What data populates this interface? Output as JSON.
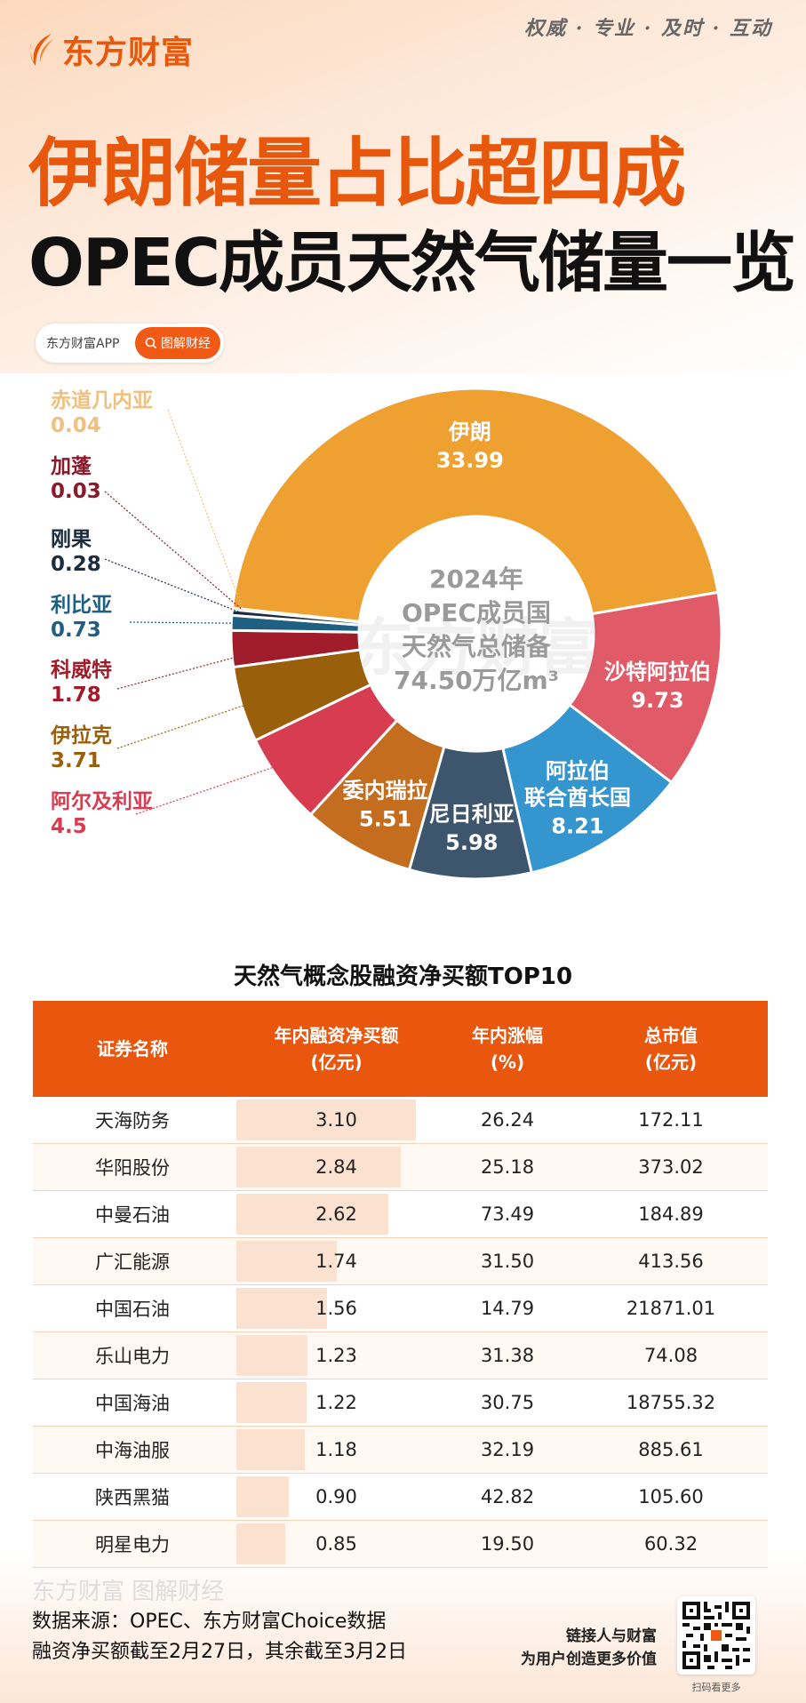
{
  "header": {
    "brand": "东方财富",
    "slogan": "权威 · 专业 · 及时 · 互动",
    "title_line1": "伊朗储量占比超四成",
    "title_line2": "OPEC成员天然气储量一览",
    "badge_app": "东方财富APP",
    "badge_button": "图解财经",
    "accent_color": "#e8580c"
  },
  "chart_data": {
    "type": "pie",
    "style": "donut",
    "center_text": [
      "2024年",
      "OPEC成员国",
      "天然气总储备",
      "74.50万亿m³"
    ],
    "unit": "万亿m³",
    "total": 74.5,
    "slices": [
      {
        "name": "伊朗",
        "label_lines": [
          "伊朗"
        ],
        "value": 33.99,
        "color": "#eea030",
        "label_position": "inside"
      },
      {
        "name": "沙特阿拉伯",
        "label_lines": [
          "沙特阿拉伯"
        ],
        "value": 9.73,
        "color": "#e05a67",
        "label_position": "inside"
      },
      {
        "name": "阿拉伯联合酋长国",
        "label_lines": [
          "阿拉伯",
          "联合酋长国"
        ],
        "value": 8.21,
        "color": "#3596cf",
        "label_position": "inside"
      },
      {
        "name": "尼日利亚",
        "label_lines": [
          "尼日利亚"
        ],
        "value": 5.98,
        "color": "#3d566e",
        "label_position": "inside"
      },
      {
        "name": "委内瑞拉",
        "label_lines": [
          "委内瑞拉"
        ],
        "value": 5.51,
        "color": "#c46d1f",
        "label_position": "inside"
      },
      {
        "name": "阿尔及利亚",
        "label_lines": [
          "阿尔及利亚"
        ],
        "value": 4.5,
        "color": "#d83c50",
        "label_position": "outside"
      },
      {
        "name": "伊拉克",
        "label_lines": [
          "伊拉克"
        ],
        "value": 3.71,
        "color": "#9a5f0b",
        "label_position": "outside"
      },
      {
        "name": "科威特",
        "label_lines": [
          "科威特"
        ],
        "value": 1.78,
        "color": "#a01c2a",
        "label_position": "outside"
      },
      {
        "name": "利比亚",
        "label_lines": [
          "利比亚"
        ],
        "value": 0.73,
        "color": "#1e5f82",
        "label_position": "outside"
      },
      {
        "name": "刚果",
        "label_lines": [
          "刚果"
        ],
        "value": 0.28,
        "color": "#1a2c3e",
        "label_position": "outside"
      },
      {
        "name": "加蓬",
        "label_lines": [
          "加蓬"
        ],
        "value": 0.03,
        "color": "#8b1a2a",
        "label_position": "outside"
      },
      {
        "name": "赤道几内亚",
        "label_lines": [
          "赤道几内亚"
        ],
        "value": 0.04,
        "color": "#f0c080",
        "label_position": "outside"
      }
    ]
  },
  "table": {
    "title": "天然气概念股融资净买额TOP10",
    "headers": [
      "证券名称",
      "年内融资净买额\n(亿元)",
      "年内涨幅\n(%)",
      "总市值\n(亿元)"
    ],
    "rows": [
      {
        "name": "天海防务",
        "net_buy": "3.10",
        "change": "26.24",
        "mcap": "172.11"
      },
      {
        "name": "华阳股份",
        "net_buy": "2.84",
        "change": "25.18",
        "mcap": "373.02"
      },
      {
        "name": "中曼石油",
        "net_buy": "2.62",
        "change": "73.49",
        "mcap": "184.89"
      },
      {
        "name": "广汇能源",
        "net_buy": "1.74",
        "change": "31.50",
        "mcap": "413.56"
      },
      {
        "name": "中国石油",
        "net_buy": "1.56",
        "change": "14.79",
        "mcap": "21871.01"
      },
      {
        "name": "乐山电力",
        "net_buy": "1.23",
        "change": "31.38",
        "mcap": "74.08"
      },
      {
        "name": "中国海油",
        "net_buy": "1.22",
        "change": "30.75",
        "mcap": "18755.32"
      },
      {
        "name": "中海油服",
        "net_buy": "1.18",
        "change": "32.19",
        "mcap": "885.61"
      },
      {
        "name": "陕西黑猫",
        "net_buy": "0.90",
        "change": "42.82",
        "mcap": "105.60"
      },
      {
        "name": "明星电力",
        "net_buy": "0.85",
        "change": "19.50",
        "mcap": "60.32"
      }
    ]
  },
  "footer": {
    "watermark": "东方财富 图解财经",
    "source": "数据来源：OPEC、东方财富Choice数据",
    "note": "融资净买额截至2月27日，其余截至3月2日",
    "slogan1": "链接人与财富",
    "slogan2": "为用户创造更多价值",
    "qr_caption": "扫码看更多"
  }
}
